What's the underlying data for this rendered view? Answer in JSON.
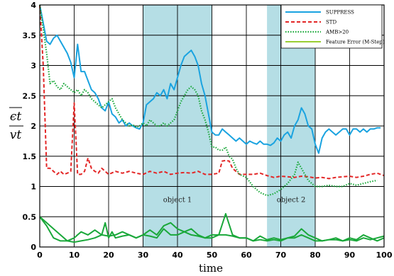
{
  "chart_data": {
    "type": "line",
    "xlabel": "time",
    "ylabel_numerator": "ϵt",
    "ylabel_denominator": "vt",
    "xlim": [
      0,
      100
    ],
    "ylim": [
      0,
      4
    ],
    "xticks": [
      "0",
      "10",
      "20",
      "30",
      "40",
      "50",
      "60",
      "70",
      "80",
      "90",
      "100"
    ],
    "yticks": [
      "0",
      "0.5",
      "1",
      "1.5",
      "2",
      "2.5",
      "3",
      "3.5",
      "4"
    ],
    "grid": true,
    "legend_position": "top-right",
    "regions": [
      {
        "label": "object 1",
        "x0": 30,
        "x1": 50
      },
      {
        "label": "object 2",
        "x0": 66,
        "x1": 80
      }
    ],
    "colors": {
      "region_fill": "#a8d8e0",
      "suppress": "#1aa3e0",
      "std": "#e32626",
      "amb": "#1aa83a",
      "feature": "#9acd32",
      "feature_alt": "#1aa83a"
    },
    "series": [
      {
        "name": "SUPPRESS",
        "style": "solid",
        "x": [
          0,
          1,
          2,
          3,
          4,
          5,
          6,
          7,
          8,
          9,
          10,
          11,
          12,
          13,
          14,
          15,
          16,
          17,
          18,
          19,
          20,
          21,
          22,
          23,
          24,
          25,
          26,
          27,
          28,
          29,
          30,
          31,
          32,
          33,
          34,
          35,
          36,
          37,
          38,
          39,
          40,
          41,
          42,
          43,
          44,
          45,
          46,
          47,
          48,
          49,
          50,
          51,
          52,
          53,
          54,
          55,
          56,
          57,
          58,
          59,
          60,
          61,
          62,
          63,
          64,
          65,
          66,
          67,
          68,
          69,
          70,
          71,
          72,
          73,
          74,
          75,
          76,
          77,
          78,
          79,
          80,
          81,
          82,
          83,
          84,
          85,
          86,
          87,
          88,
          89,
          90,
          91,
          92,
          93,
          94,
          95,
          96,
          97,
          98,
          99
        ],
        "y": [
          4.0,
          3.7,
          3.4,
          3.35,
          3.45,
          3.5,
          3.4,
          3.3,
          3.2,
          3.05,
          2.8,
          3.35,
          2.9,
          2.9,
          2.75,
          2.6,
          2.55,
          2.45,
          2.3,
          2.25,
          2.4,
          2.2,
          2.15,
          2.05,
          2.1,
          2.0,
          2.05,
          2.0,
          1.97,
          1.95,
          2.05,
          2.35,
          2.4,
          2.45,
          2.55,
          2.5,
          2.6,
          2.45,
          2.7,
          2.6,
          2.8,
          3.0,
          3.15,
          3.2,
          3.25,
          3.15,
          3.0,
          2.7,
          2.5,
          2.2,
          1.9,
          1.85,
          1.85,
          1.95,
          1.9,
          1.85,
          1.8,
          1.75,
          1.8,
          1.75,
          1.7,
          1.75,
          1.72,
          1.7,
          1.75,
          1.7,
          1.7,
          1.68,
          1.72,
          1.8,
          1.75,
          1.85,
          1.9,
          1.8,
          2.0,
          2.1,
          2.3,
          2.2,
          2.0,
          1.95,
          1.7,
          1.55,
          1.8,
          1.9,
          1.95,
          1.9,
          1.85,
          1.9,
          1.95,
          1.95,
          1.85,
          1.95,
          1.95,
          1.9,
          1.95,
          1.9,
          1.95,
          1.95,
          1.97,
          1.97
        ]
      },
      {
        "name": "STD",
        "style": "dashed",
        "x": [
          0,
          1,
          2,
          3,
          4,
          5,
          6,
          7,
          8,
          9,
          10,
          11,
          12,
          13,
          14,
          15,
          16,
          17,
          18,
          19,
          20,
          22,
          24,
          26,
          28,
          30,
          32,
          34,
          36,
          38,
          40,
          42,
          44,
          46,
          48,
          50,
          52,
          53,
          54,
          55,
          56,
          57,
          58,
          60,
          62,
          64,
          66,
          68,
          70,
          72,
          74,
          76,
          78,
          80,
          82,
          84,
          86,
          88,
          90,
          92,
          94,
          96,
          98,
          100
        ],
        "y": [
          4.0,
          3.0,
          1.3,
          1.3,
          1.25,
          1.2,
          1.25,
          1.2,
          1.22,
          1.25,
          2.38,
          1.2,
          1.2,
          1.25,
          1.47,
          1.3,
          1.25,
          1.22,
          1.3,
          1.25,
          1.2,
          1.25,
          1.22,
          1.25,
          1.22,
          1.2,
          1.25,
          1.22,
          1.25,
          1.2,
          1.22,
          1.23,
          1.22,
          1.25,
          1.2,
          1.2,
          1.22,
          1.42,
          1.43,
          1.42,
          1.3,
          1.25,
          1.2,
          1.2,
          1.2,
          1.22,
          1.18,
          1.15,
          1.17,
          1.16,
          1.15,
          1.17,
          1.16,
          1.14,
          1.15,
          1.13,
          1.15,
          1.16,
          1.17,
          1.15,
          1.17,
          1.2,
          1.22,
          1.18
        ]
      },
      {
        "name": "AMB>20",
        "style": "dotted",
        "x": [
          0,
          1,
          2,
          3,
          4,
          5,
          6,
          7,
          8,
          9,
          10,
          11,
          12,
          13,
          14,
          15,
          16,
          17,
          18,
          19,
          20,
          21,
          22,
          23,
          24,
          25,
          26,
          27,
          28,
          29,
          30,
          31,
          32,
          33,
          34,
          35,
          36,
          37,
          38,
          39,
          40,
          41,
          42,
          43,
          44,
          45,
          46,
          47,
          48,
          49,
          50,
          51,
          52,
          53,
          54,
          55,
          56,
          57,
          58,
          60,
          62,
          64,
          66,
          68,
          70,
          72,
          74,
          75,
          76,
          77,
          78,
          79,
          80,
          82,
          84,
          86,
          88,
          90,
          92,
          94,
          96,
          98
        ],
        "y": [
          4.0,
          3.6,
          3.2,
          2.7,
          2.75,
          2.65,
          2.6,
          2.7,
          2.65,
          2.6,
          2.55,
          2.6,
          2.5,
          2.6,
          2.55,
          2.45,
          2.4,
          2.35,
          2.3,
          2.35,
          2.4,
          2.45,
          2.3,
          2.2,
          2.1,
          2.05,
          2.0,
          2.02,
          1.98,
          2.0,
          2.05,
          2.0,
          2.1,
          2.05,
          2.0,
          2.0,
          2.05,
          2.0,
          2.05,
          2.1,
          2.25,
          2.4,
          2.5,
          2.6,
          2.65,
          2.6,
          2.5,
          2.25,
          2.1,
          1.9,
          1.65,
          1.65,
          1.6,
          1.6,
          1.65,
          1.5,
          1.45,
          1.3,
          1.2,
          1.15,
          1.0,
          0.9,
          0.85,
          0.88,
          0.95,
          1.05,
          1.2,
          1.4,
          1.3,
          1.2,
          1.1,
          1.05,
          1.0,
          1.0,
          1.02,
          1.0,
          1.0,
          1.05,
          1.02,
          1.05,
          1.08,
          1.1
        ]
      },
      {
        "name": "Feature Error (M-Step)",
        "style": "solid",
        "x": [
          0,
          2,
          4,
          6,
          8,
          10,
          12,
          14,
          16,
          18,
          19,
          20,
          21,
          22,
          24,
          26,
          28,
          30,
          32,
          34,
          36,
          38,
          40,
          42,
          44,
          46,
          48,
          50,
          52,
          54,
          56,
          58,
          60,
          62,
          64,
          66,
          68,
          70,
          72,
          74,
          76,
          78,
          80,
          82,
          84,
          86,
          88,
          90,
          92,
          94,
          96,
          98,
          100
        ],
        "y": [
          0.5,
          0.4,
          0.3,
          0.2,
          0.1,
          0.08,
          0.1,
          0.12,
          0.15,
          0.2,
          0.4,
          0.15,
          0.25,
          0.15,
          0.18,
          0.2,
          0.15,
          0.2,
          0.18,
          0.15,
          0.3,
          0.2,
          0.2,
          0.25,
          0.3,
          0.2,
          0.15,
          0.15,
          0.2,
          0.55,
          0.2,
          0.15,
          0.15,
          0.1,
          0.18,
          0.12,
          0.15,
          0.12,
          0.15,
          0.18,
          0.3,
          0.2,
          0.15,
          0.1,
          0.12,
          0.15,
          0.1,
          0.12,
          0.1,
          0.15,
          0.12,
          0.15,
          0.18
        ]
      },
      {
        "name": "",
        "style": "solid",
        "x": [
          0,
          2,
          4,
          6,
          8,
          10,
          11,
          12,
          14,
          16,
          18,
          20,
          22,
          24,
          26,
          28,
          30,
          32,
          34,
          36,
          38,
          40,
          42,
          44,
          46,
          48,
          50,
          52,
          54,
          56,
          58,
          60,
          62,
          64,
          66,
          68,
          70,
          72,
          74,
          76,
          78,
          80,
          82,
          84,
          86,
          88,
          90,
          92,
          94,
          96,
          98,
          100
        ],
        "y": [
          0.5,
          0.35,
          0.15,
          0.1,
          0.1,
          0.15,
          0.2,
          0.25,
          0.2,
          0.28,
          0.2,
          0.18,
          0.2,
          0.25,
          0.2,
          0.15,
          0.2,
          0.28,
          0.2,
          0.35,
          0.4,
          0.3,
          0.25,
          0.2,
          0.18,
          0.15,
          0.2,
          0.2,
          0.2,
          0.18,
          0.15,
          0.15,
          0.1,
          0.12,
          0.1,
          0.12,
          0.1,
          0.15,
          0.15,
          0.2,
          0.15,
          0.1,
          0.1,
          0.12,
          0.12,
          0.1,
          0.15,
          0.12,
          0.2,
          0.15,
          0.1,
          0.15
        ]
      }
    ]
  }
}
